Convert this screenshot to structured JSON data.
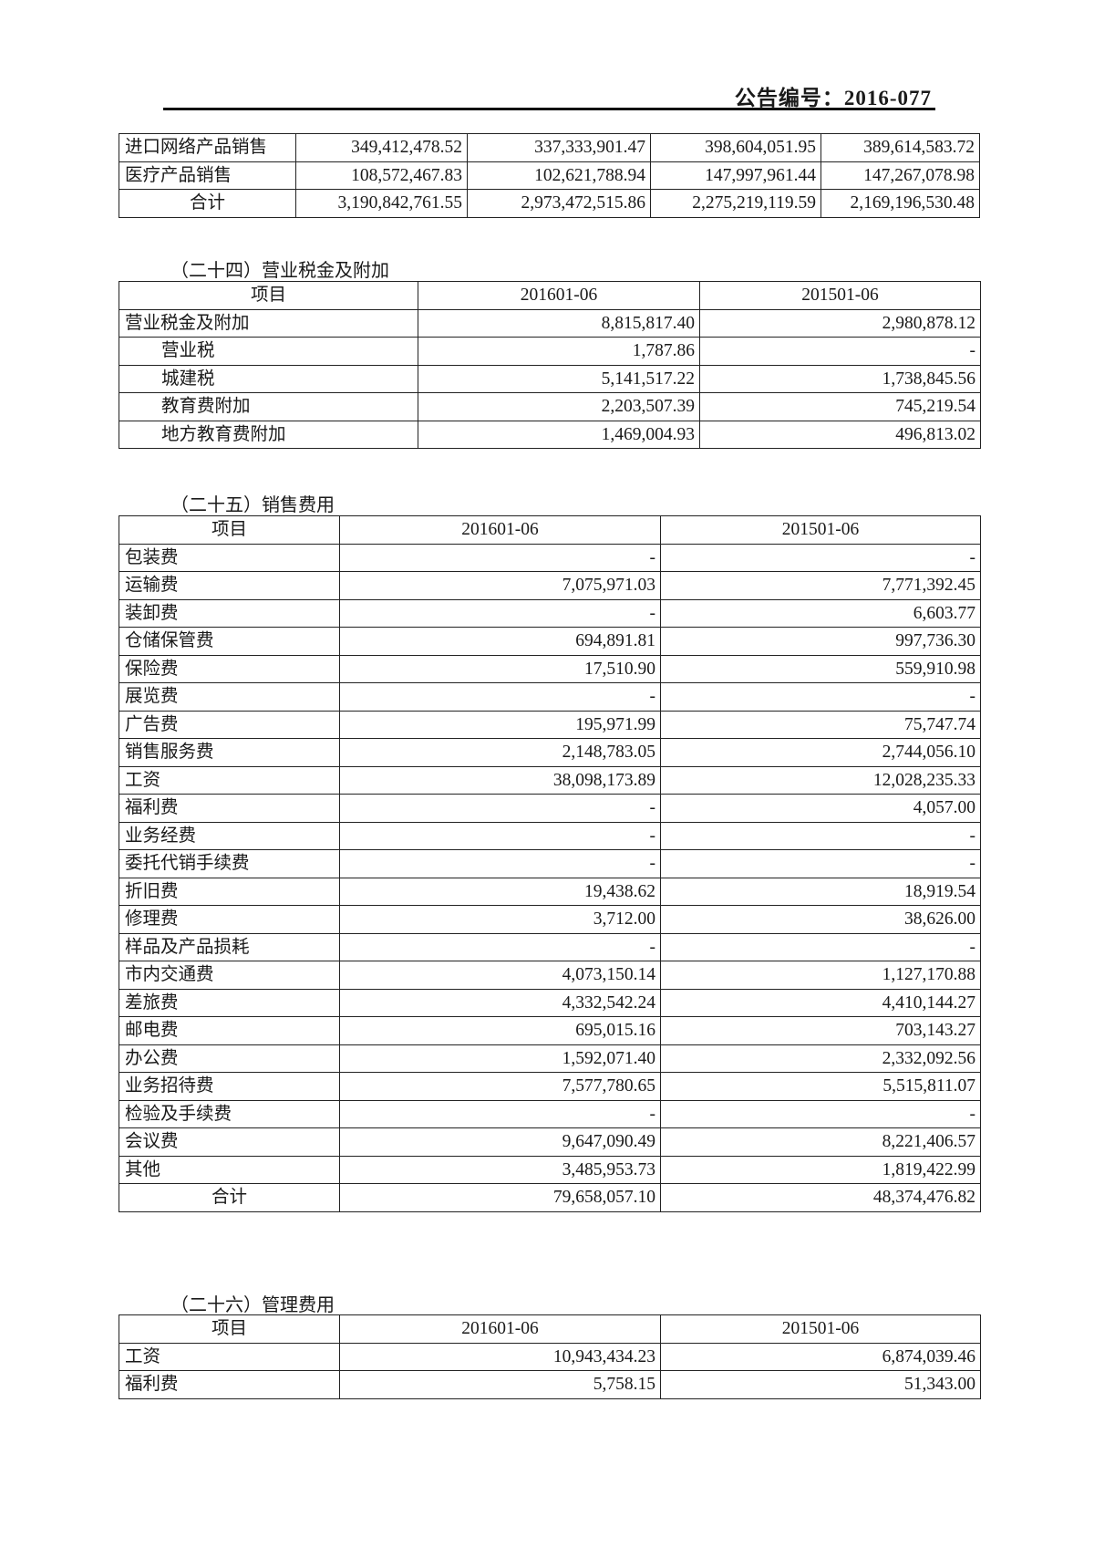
{
  "header": {
    "notice_no": "公告编号：2016-077"
  },
  "revenue_table": {
    "rows": [
      {
        "label": "进口网络产品销售",
        "values": [
          "349,412,478.52",
          "337,333,901.47",
          "398,604,051.95",
          "389,614,583.72"
        ]
      },
      {
        "label": "医疗产品销售",
        "values": [
          "108,572,467.83",
          "102,621,788.94",
          "147,997,961.44",
          "147,267,078.98"
        ]
      },
      {
        "label": "合计",
        "values": [
          "3,190,842,761.55",
          "2,973,472,515.86",
          "2,275,219,119.59",
          "2,169,196,530.48"
        ],
        "total": true
      }
    ]
  },
  "tax_section": {
    "title": "（二十四）营业税金及附加",
    "headers": [
      "项目",
      "201601-06",
      "201501-06"
    ],
    "rows": [
      {
        "label": "营业税金及附加",
        "values": [
          "8,815,817.40",
          "2,980,878.12"
        ]
      },
      {
        "label": "营业税",
        "values": [
          "1,787.86",
          "-"
        ],
        "indent": true
      },
      {
        "label": "城建税",
        "values": [
          "5,141,517.22",
          "1,738,845.56"
        ],
        "indent": true
      },
      {
        "label": "教育费附加",
        "values": [
          "2,203,507.39",
          "745,219.54"
        ],
        "indent": true
      },
      {
        "label": "地方教育费附加",
        "values": [
          "1,469,004.93",
          "496,813.02"
        ],
        "indent": true
      }
    ]
  },
  "selling_section": {
    "title": "（二十五）销售费用",
    "headers": [
      "项目",
      "201601-06",
      "201501-06"
    ],
    "rows": [
      {
        "label": "包装费",
        "values": [
          "-",
          "-"
        ]
      },
      {
        "label": "运输费",
        "values": [
          "7,075,971.03",
          "7,771,392.45"
        ]
      },
      {
        "label": "装卸费",
        "values": [
          "-",
          "6,603.77"
        ]
      },
      {
        "label": "仓储保管费",
        "values": [
          "694,891.81",
          "997,736.30"
        ]
      },
      {
        "label": "保险费",
        "values": [
          "17,510.90",
          "559,910.98"
        ]
      },
      {
        "label": "展览费",
        "values": [
          "-",
          "-"
        ]
      },
      {
        "label": "广告费",
        "values": [
          "195,971.99",
          "75,747.74"
        ]
      },
      {
        "label": "销售服务费",
        "values": [
          "2,148,783.05",
          "2,744,056.10"
        ]
      },
      {
        "label": "工资",
        "values": [
          "38,098,173.89",
          "12,028,235.33"
        ]
      },
      {
        "label": "福利费",
        "values": [
          "-",
          "4,057.00"
        ]
      },
      {
        "label": "业务经费",
        "values": [
          "-",
          "-"
        ]
      },
      {
        "label": "委托代销手续费",
        "values": [
          "-",
          "-"
        ]
      },
      {
        "label": "折旧费",
        "values": [
          "19,438.62",
          "18,919.54"
        ]
      },
      {
        "label": "修理费",
        "values": [
          "3,712.00",
          "38,626.00"
        ]
      },
      {
        "label": "样品及产品损耗",
        "values": [
          "-",
          "-"
        ]
      },
      {
        "label": "市内交通费",
        "values": [
          "4,073,150.14",
          "1,127,170.88"
        ]
      },
      {
        "label": "差旅费",
        "values": [
          "4,332,542.24",
          "4,410,144.27"
        ]
      },
      {
        "label": "邮电费",
        "values": [
          "695,015.16",
          "703,143.27"
        ]
      },
      {
        "label": "办公费",
        "values": [
          "1,592,071.40",
          "2,332,092.56"
        ]
      },
      {
        "label": "业务招待费",
        "values": [
          "7,577,780.65",
          "5,515,811.07"
        ]
      },
      {
        "label": "检验及手续费",
        "values": [
          "-",
          "-"
        ]
      },
      {
        "label": "会议费",
        "values": [
          "9,647,090.49",
          "8,221,406.57"
        ]
      },
      {
        "label": "其他",
        "values": [
          "3,485,953.73",
          "1,819,422.99"
        ]
      },
      {
        "label": "合计",
        "values": [
          "79,658,057.10",
          "48,374,476.82"
        ],
        "total": true
      }
    ]
  },
  "admin_section": {
    "title": "（二十六）管理费用",
    "headers": [
      "项目",
      "201601-06",
      "201501-06"
    ],
    "rows": [
      {
        "label": "工资",
        "values": [
          "10,943,434.23",
          "6,874,039.46"
        ]
      },
      {
        "label": "福利费",
        "values": [
          "5,758.15",
          "51,343.00"
        ]
      }
    ]
  }
}
